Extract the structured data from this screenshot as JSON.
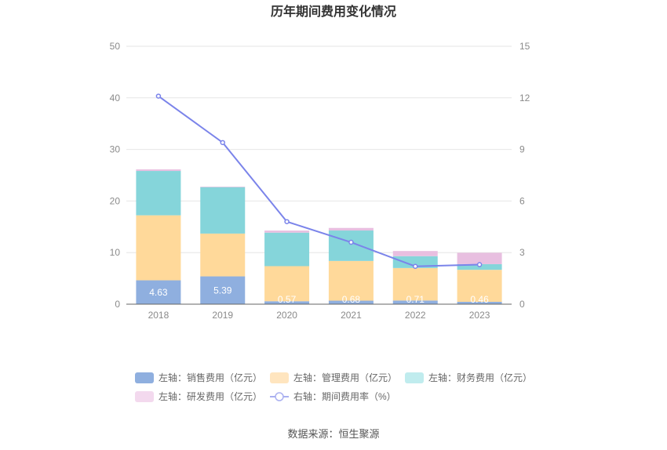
{
  "chart_data": {
    "type": "bar",
    "title": "历年期间费用变化情况",
    "categories": [
      "2018",
      "2019",
      "2020",
      "2021",
      "2022",
      "2023"
    ],
    "series": [
      {
        "name": "左轴：销售费用（亿元）",
        "axis": "left",
        "kind": "bar",
        "color": "#8fafdf",
        "values": [
          4.63,
          5.39,
          0.57,
          0.68,
          0.71,
          0.46
        ],
        "labels": [
          "4.63",
          "5.39",
          "0.57",
          "0.68",
          "0.71",
          "0.46"
        ]
      },
      {
        "name": "左轴：管理费用（亿元）",
        "axis": "left",
        "kind": "bar",
        "color": "#ffd99a",
        "values": [
          12.6,
          8.3,
          6.8,
          7.7,
          6.3,
          6.2
        ]
      },
      {
        "name": "左轴：财务费用（亿元）",
        "axis": "left",
        "kind": "bar",
        "color": "#85d5da",
        "values": [
          8.6,
          9.0,
          6.5,
          5.9,
          2.3,
          1.1
        ]
      },
      {
        "name": "左轴：研发费用（亿元）",
        "axis": "left",
        "kind": "bar",
        "color": "#e8bfe0",
        "values": [
          0.3,
          0.1,
          0.4,
          0.5,
          1.0,
          2.2
        ]
      },
      {
        "name": "右轴：期间费用率（%）",
        "axis": "right",
        "kind": "line",
        "color": "#7b84ea",
        "values": [
          12.1,
          9.4,
          4.8,
          3.6,
          2.2,
          2.3
        ]
      }
    ],
    "left_axis": {
      "ylim": [
        0,
        50
      ],
      "ticks": [
        "0",
        "10",
        "20",
        "30",
        "40",
        "50"
      ]
    },
    "right_axis": {
      "ylim": [
        0,
        15
      ],
      "ticks": [
        "0",
        "3",
        "6",
        "9",
        "12",
        "15"
      ]
    },
    "grid": true,
    "legend_position": "bottom"
  },
  "legend_colors": {
    "left_axis_sales_expense": "#8fafdf",
    "left_axis_admin_expense": "#ffe5bf",
    "left_axis_finance_expense": "#c0ecee",
    "left_axis_rd_expense": "#f3d9ee",
    "right_axis_expense_ratio": "#aab0f0"
  },
  "source": "数据来源：恒生聚源"
}
